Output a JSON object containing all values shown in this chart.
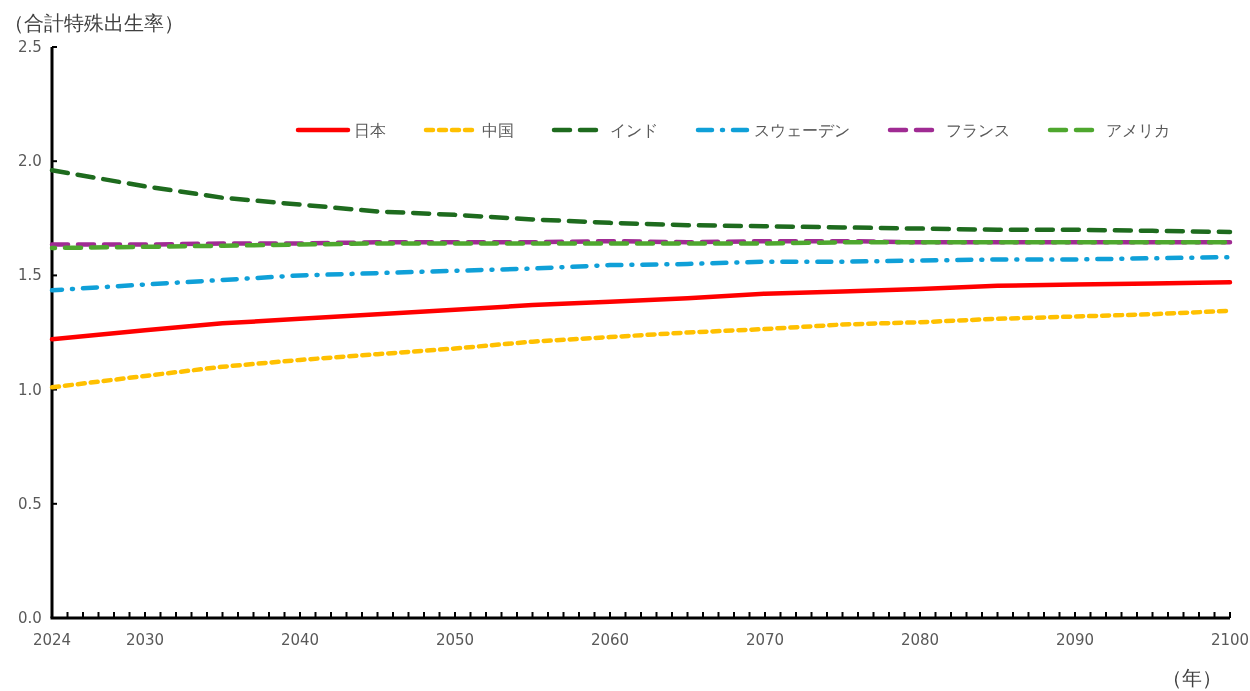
{
  "chart_data": {
    "type": "line",
    "ylabel": "（合計特殊出生率）",
    "xlabel": "（年）",
    "x": [
      2024,
      2030,
      2035,
      2040,
      2045,
      2050,
      2055,
      2060,
      2065,
      2070,
      2075,
      2080,
      2085,
      2090,
      2095,
      2100
    ],
    "series": [
      {
        "name": "日本",
        "color": "#ff0000",
        "line_style": "solid",
        "values": [
          1.22,
          1.26,
          1.29,
          1.31,
          1.33,
          1.35,
          1.37,
          1.385,
          1.4,
          1.42,
          1.43,
          1.44,
          1.455,
          1.46,
          1.465,
          1.47
        ]
      },
      {
        "name": "中国",
        "color": "#ffc000",
        "line_style": "dotted",
        "values": [
          1.01,
          1.06,
          1.1,
          1.13,
          1.155,
          1.18,
          1.21,
          1.23,
          1.25,
          1.265,
          1.285,
          1.295,
          1.31,
          1.32,
          1.33,
          1.345
        ]
      },
      {
        "name": "インド",
        "color": "#1e6b1e",
        "line_style": "dashed",
        "values": [
          1.96,
          1.89,
          1.84,
          1.81,
          1.78,
          1.765,
          1.745,
          1.73,
          1.72,
          1.715,
          1.71,
          1.705,
          1.7,
          1.7,
          1.695,
          1.69
        ]
      },
      {
        "name": "スウェーデン",
        "color": "#0fa0d8",
        "line_style": "dashdot",
        "values": [
          1.435,
          1.46,
          1.48,
          1.5,
          1.51,
          1.52,
          1.53,
          1.545,
          1.55,
          1.56,
          1.56,
          1.565,
          1.57,
          1.57,
          1.575,
          1.58
        ]
      },
      {
        "name": "フランス",
        "color": "#a02b93",
        "line_style": "dashed",
        "values": [
          1.635,
          1.635,
          1.64,
          1.64,
          1.645,
          1.645,
          1.645,
          1.65,
          1.645,
          1.65,
          1.65,
          1.645,
          1.645,
          1.645,
          1.645,
          1.645
        ]
      },
      {
        "name": "アメリカ",
        "color": "#4ea72e",
        "line_style": "dashed",
        "values": [
          1.62,
          1.625,
          1.63,
          1.635,
          1.64,
          1.64,
          1.64,
          1.64,
          1.64,
          1.64,
          1.645,
          1.645,
          1.645,
          1.645,
          1.645,
          1.645
        ]
      }
    ],
    "xlim": [
      2024,
      2100
    ],
    "xticks": [
      2024,
      {
        "value": 2025,
        "label": null
      },
      {
        "value": 2026,
        "label": null
      },
      {
        "value": 2027,
        "label": null
      },
      {
        "value": 2028,
        "label": null
      },
      {
        "value": 2029,
        "label": null
      },
      2030,
      {
        "value": 2031,
        "label": null
      },
      {
        "value": 2032,
        "label": null
      },
      {
        "value": 2033,
        "label": null
      },
      {
        "value": 2034,
        "label": null
      },
      {
        "value": 2035,
        "label": null
      },
      {
        "value": 2036,
        "label": null
      },
      {
        "value": 2037,
        "label": null
      },
      {
        "value": 2038,
        "label": null
      },
      {
        "value": 2039,
        "label": null
      },
      2040,
      {
        "value": 2041,
        "label": null
      },
      {
        "value": 2042,
        "label": null
      },
      {
        "value": 2043,
        "label": null
      },
      {
        "value": 2044,
        "label": null
      },
      {
        "value": 2045,
        "label": null
      },
      {
        "value": 2046,
        "label": null
      },
      {
        "value": 2047,
        "label": null
      },
      {
        "value": 2048,
        "label": null
      },
      {
        "value": 2049,
        "label": null
      },
      2050,
      {
        "value": 2051,
        "label": null
      },
      {
        "value": 2052,
        "label": null
      },
      {
        "value": 2053,
        "label": null
      },
      {
        "value": 2054,
        "label": null
      },
      {
        "value": 2055,
        "label": null
      },
      {
        "value": 2056,
        "label": null
      },
      {
        "value": 2057,
        "label": null
      },
      {
        "value": 2058,
        "label": null
      },
      {
        "value": 2059,
        "label": null
      },
      2060,
      {
        "value": 2061,
        "label": null
      },
      {
        "value": 2062,
        "label": null
      },
      {
        "value": 2063,
        "label": null
      },
      {
        "value": 2064,
        "label": null
      },
      {
        "value": 2065,
        "label": null
      },
      {
        "value": 2066,
        "label": null
      },
      {
        "value": 2067,
        "label": null
      },
      {
        "value": 2068,
        "label": null
      },
      {
        "value": 2069,
        "label": null
      },
      2070,
      {
        "value": 2071,
        "label": null
      },
      {
        "value": 2072,
        "label": null
      },
      {
        "value": 2073,
        "label": null
      },
      {
        "value": 2074,
        "label": null
      },
      {
        "value": 2075,
        "label": null
      },
      {
        "value": 2076,
        "label": null
      },
      {
        "value": 2077,
        "label": null
      },
      {
        "value": 2078,
        "label": null
      },
      {
        "value": 2079,
        "label": null
      },
      2080,
      {
        "value": 2081,
        "label": null
      },
      {
        "value": 2082,
        "label": null
      },
      {
        "value": 2083,
        "label": null
      },
      {
        "value": 2084,
        "label": null
      },
      {
        "value": 2085,
        "label": null
      },
      {
        "value": 2086,
        "label": null
      },
      {
        "value": 2087,
        "label": null
      },
      {
        "value": 2088,
        "label": null
      },
      {
        "value": 2089,
        "label": null
      },
      2090,
      {
        "value": 2091,
        "label": null
      },
      {
        "value": 2092,
        "label": null
      },
      {
        "value": 2093,
        "label": null
      },
      {
        "value": 2094,
        "label": null
      },
      {
        "value": 2095,
        "label": null
      },
      {
        "value": 2096,
        "label": null
      },
      {
        "value": 2097,
        "label": null
      },
      {
        "value": 2098,
        "label": null
      },
      {
        "value": 2099,
        "label": null
      },
      2100
    ],
    "ylim": [
      0,
      2.5
    ],
    "yticks": [
      {
        "value": 0,
        "label": "0.0"
      },
      0.5,
      {
        "value": 1,
        "label": "1.0"
      },
      1.5,
      {
        "value": 2,
        "label": "2.0"
      },
      2.5
    ],
    "legend": "top",
    "grid": false,
    "marker": "none"
  }
}
